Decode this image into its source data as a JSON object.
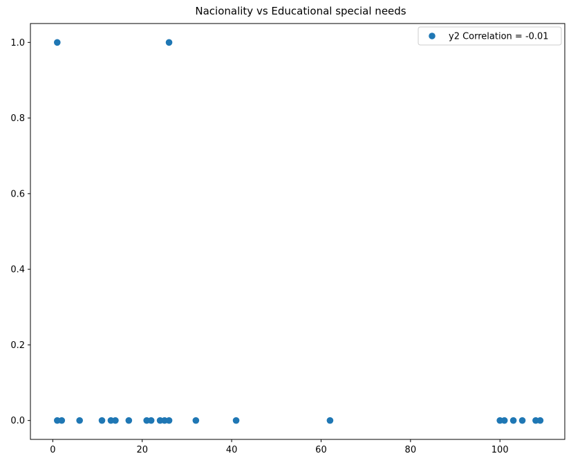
{
  "chart_data": {
    "type": "scatter",
    "title": "Nacionality vs Educational special needs",
    "xlabel": "",
    "ylabel": "",
    "xlim": [
      -5,
      114.5
    ],
    "ylim": [
      -0.05,
      1.05
    ],
    "xticks": [
      0,
      20,
      40,
      60,
      80,
      100
    ],
    "yticks": [
      0.0,
      0.2,
      0.4,
      0.6,
      0.8,
      1.0
    ],
    "xtick_labels": [
      "0",
      "20",
      "40",
      "60",
      "80",
      "100"
    ],
    "ytick_labels": [
      "0.0",
      "0.2",
      "0.4",
      "0.6",
      "0.8",
      "1.0"
    ],
    "grid": false,
    "legend_position": "top-right",
    "series": [
      {
        "name": "y2 Correlation = -0.01",
        "color": "#1f77b4",
        "x": [
          1,
          26,
          1,
          2,
          6,
          11,
          13,
          14,
          17,
          21,
          22,
          24,
          25,
          26,
          32,
          41,
          62,
          100,
          101,
          103,
          105,
          108,
          109
        ],
        "y": [
          1,
          1,
          0,
          0,
          0,
          0,
          0,
          0,
          0,
          0,
          0,
          0,
          0,
          0,
          0,
          0,
          0,
          0,
          0,
          0,
          0,
          0,
          0
        ]
      }
    ]
  }
}
